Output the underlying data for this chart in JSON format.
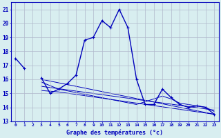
{
  "xlabel": "Graphe des températures (°c)",
  "background_color": "#d8eef0",
  "grid_color": "#b0b8cc",
  "line_color": "#0000bb",
  "x_ticks": [
    0,
    1,
    2,
    3,
    4,
    5,
    6,
    7,
    8,
    9,
    10,
    11,
    12,
    13,
    14,
    15,
    16,
    17,
    18,
    19,
    20,
    21,
    22,
    23
  ],
  "ylim": [
    13,
    21.5
  ],
  "yticks": [
    13,
    14,
    15,
    16,
    17,
    18,
    19,
    20,
    21
  ],
  "series1_x": [
    0,
    1,
    2,
    3,
    4,
    5,
    6,
    7,
    8,
    9,
    10,
    11,
    12,
    13,
    14,
    15,
    16,
    17,
    18,
    19,
    20,
    21,
    22,
    23
  ],
  "series1_y": [
    17.5,
    16.8,
    null,
    16.1,
    15.0,
    15.3,
    15.7,
    16.3,
    18.8,
    19.0,
    20.2,
    19.7,
    21.0,
    19.7,
    16.0,
    14.2,
    14.2,
    15.3,
    14.7,
    14.2,
    14.0,
    14.1,
    14.0,
    13.5
  ],
  "series2_x": [
    3,
    23
  ],
  "series2_y": [
    16.0,
    13.5
  ],
  "series3_x": [
    3,
    5,
    14,
    17,
    18,
    19,
    21,
    22,
    23
  ],
  "series3_y": [
    15.8,
    15.3,
    14.2,
    14.8,
    14.6,
    14.3,
    14.1,
    14.0,
    13.7
  ],
  "series4_x": [
    3,
    23
  ],
  "series4_y": [
    15.5,
    13.8
  ],
  "series5_x": [
    3,
    5,
    23
  ],
  "series5_y": [
    15.2,
    15.1,
    13.5
  ]
}
